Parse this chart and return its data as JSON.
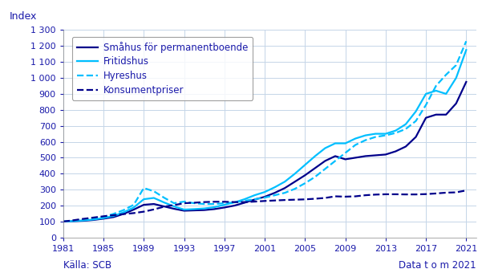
{
  "source_left": "Källa: SCB",
  "source_right": "Data t o m 2021",
  "ylabel": "Index",
  "text_color": "#1a1aaa",
  "xlim": [
    1981,
    2022
  ],
  "ylim": [
    0,
    1300
  ],
  "yticks": [
    0,
    100,
    200,
    300,
    400,
    500,
    600,
    700,
    800,
    900,
    1000,
    1100,
    1200,
    1300
  ],
  "ytick_labels": [
    "0",
    "100",
    "200",
    "300",
    "400",
    "500",
    "600",
    "700",
    "800",
    "900",
    "1 000",
    "1 100",
    "1 200",
    "1 300"
  ],
  "xticks": [
    1981,
    1985,
    1989,
    1993,
    1997,
    2001,
    2005,
    2009,
    2013,
    2017,
    2021
  ],
  "background_color": "#ffffff",
  "grid_color": "#c5d5e8",
  "series": {
    "smahus": {
      "label": "Småhus för permanentboende",
      "color": "#00008B",
      "linestyle": "solid",
      "linewidth": 1.6,
      "years": [
        1981,
        1982,
        1983,
        1984,
        1985,
        1986,
        1987,
        1988,
        1989,
        1990,
        1991,
        1992,
        1993,
        1994,
        1995,
        1996,
        1997,
        1998,
        1999,
        2000,
        2001,
        2002,
        2003,
        2004,
        2005,
        2006,
        2007,
        2008,
        2009,
        2010,
        2011,
        2012,
        2013,
        2014,
        2015,
        2016,
        2017,
        2018,
        2019,
        2020,
        2021
      ],
      "values": [
        100,
        102,
        105,
        110,
        118,
        128,
        148,
        175,
        205,
        210,
        195,
        180,
        168,
        170,
        172,
        178,
        188,
        200,
        218,
        238,
        255,
        280,
        310,
        350,
        390,
        435,
        480,
        510,
        490,
        500,
        510,
        515,
        520,
        540,
        570,
        630,
        750,
        770,
        770,
        840,
        975
      ]
    },
    "fritidshus": {
      "label": "Fritidshus",
      "color": "#00BFFF",
      "linestyle": "solid",
      "linewidth": 1.6,
      "years": [
        1981,
        1982,
        1983,
        1984,
        1985,
        1986,
        1987,
        1988,
        1989,
        1990,
        1991,
        1992,
        1993,
        1994,
        1995,
        1996,
        1997,
        1998,
        1999,
        2000,
        2001,
        2002,
        2003,
        2004,
        2005,
        2006,
        2007,
        2008,
        2009,
        2010,
        2011,
        2012,
        2013,
        2014,
        2015,
        2016,
        2017,
        2018,
        2019,
        2020,
        2021
      ],
      "values": [
        100,
        103,
        107,
        113,
        122,
        135,
        158,
        188,
        240,
        248,
        220,
        195,
        175,
        178,
        182,
        190,
        205,
        220,
        240,
        265,
        285,
        315,
        350,
        400,
        455,
        510,
        560,
        590,
        590,
        620,
        640,
        650,
        650,
        670,
        710,
        790,
        900,
        920,
        900,
        1000,
        1175
      ]
    },
    "hyreshus": {
      "label": "Hyreshus",
      "color": "#00BFFF",
      "linestyle": "dashed",
      "linewidth": 1.6,
      "years": [
        1981,
        1982,
        1983,
        1984,
        1985,
        1986,
        1987,
        1988,
        1989,
        1990,
        1991,
        1992,
        1993,
        1994,
        1995,
        1996,
        1997,
        1998,
        1999,
        2000,
        2001,
        2002,
        2003,
        2004,
        2005,
        2006,
        2007,
        2008,
        2009,
        2010,
        2011,
        2012,
        2013,
        2014,
        2015,
        2016,
        2017,
        2018,
        2019,
        2020,
        2021
      ],
      "values": [
        100,
        105,
        110,
        118,
        130,
        148,
        172,
        205,
        310,
        290,
        250,
        215,
        225,
        215,
        210,
        210,
        215,
        220,
        230,
        240,
        250,
        265,
        280,
        305,
        340,
        380,
        430,
        480,
        530,
        580,
        610,
        630,
        640,
        655,
        680,
        730,
        830,
        950,
        1020,
        1080,
        1230
      ]
    },
    "konsumentpriser": {
      "label": "Konsumentpriser",
      "color": "#00008B",
      "linestyle": "dashed",
      "linewidth": 1.6,
      "years": [
        1981,
        1982,
        1983,
        1984,
        1985,
        1986,
        1987,
        1988,
        1989,
        1990,
        1991,
        1992,
        1993,
        1994,
        1995,
        1996,
        1997,
        1998,
        1999,
        2000,
        2001,
        2002,
        2003,
        2004,
        2005,
        2006,
        2007,
        2008,
        2009,
        2010,
        2011,
        2012,
        2013,
        2014,
        2015,
        2016,
        2017,
        2018,
        2019,
        2020,
        2021
      ],
      "values": [
        100,
        108,
        117,
        125,
        133,
        140,
        147,
        153,
        162,
        176,
        193,
        203,
        215,
        218,
        222,
        224,
        224,
        222,
        222,
        225,
        229,
        232,
        235,
        237,
        239,
        243,
        248,
        258,
        256,
        258,
        265,
        269,
        271,
        271,
        270,
        270,
        272,
        276,
        281,
        283,
        295
      ]
    }
  }
}
